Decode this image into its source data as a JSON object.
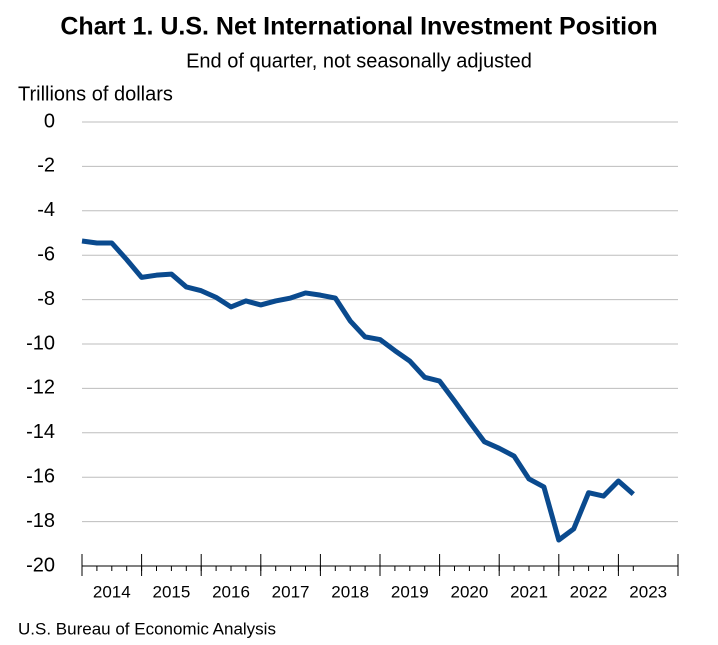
{
  "chart_data": {
    "type": "line",
    "title": "Chart 1. U.S. Net International Investment Position",
    "subtitle": "End of quarter, not seasonally adjusted",
    "y_label": "Trillions of dollars",
    "source": "U.S. Bureau of Economic Analysis",
    "x": [
      2014,
      2014.25,
      2014.5,
      2014.75,
      2015,
      2015.25,
      2015.5,
      2015.75,
      2016,
      2016.25,
      2016.5,
      2016.75,
      2017,
      2017.25,
      2017.5,
      2017.75,
      2018,
      2018.25,
      2018.5,
      2018.75,
      2019,
      2019.25,
      2019.5,
      2019.75,
      2020,
      2020.25,
      2020.5,
      2020.75,
      2021,
      2021.25,
      2021.5,
      2021.75,
      2022,
      2022.25,
      2022.5,
      2022.75,
      2023,
      2023.25
    ],
    "series": [
      {
        "name": "U.S. Net International Investment Position",
        "color": "#0a4a8e",
        "values": [
          -5.36,
          -5.45,
          -5.45,
          -6.2,
          -7.0,
          -6.9,
          -6.85,
          -7.43,
          -7.6,
          -7.9,
          -8.33,
          -8.06,
          -8.24,
          -8.06,
          -7.93,
          -7.7,
          -7.8,
          -7.93,
          -8.96,
          -9.68,
          -9.8,
          -10.3,
          -10.77,
          -11.5,
          -11.67,
          -12.57,
          -13.5,
          -14.4,
          -14.7,
          -15.05,
          -16.08,
          -16.44,
          -18.83,
          -18.33,
          -16.7,
          -16.85,
          -16.17,
          -16.76
        ]
      }
    ],
    "xlim": [
      2014,
      2024
    ],
    "xticks": [
      2014,
      2015,
      2016,
      2017,
      2018,
      2019,
      2020,
      2021,
      2022,
      2023
    ],
    "ylim": [
      -20,
      0
    ],
    "yticks": [
      0,
      -2,
      -4,
      -6,
      -8,
      -10,
      -12,
      -14,
      -16,
      -18,
      -20
    ],
    "grid": true
  }
}
